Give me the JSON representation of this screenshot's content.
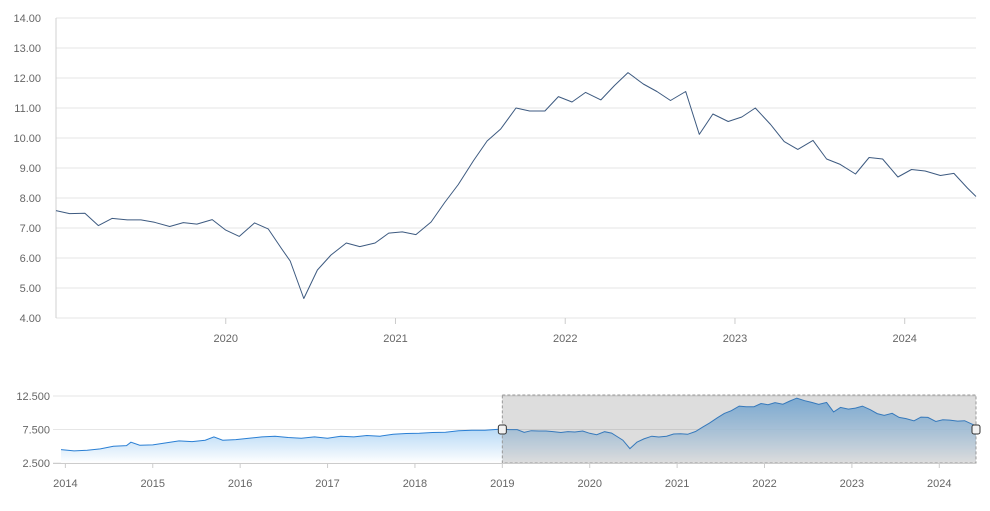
{
  "chart_data": [
    {
      "type": "line",
      "name": "main-chart",
      "ylim": [
        4.0,
        14.0
      ],
      "y_ticks": [
        "4.00",
        "5.00",
        "6.00",
        "7.00",
        "8.00",
        "9.00",
        "10.00",
        "11.00",
        "12.00",
        "13.00",
        "14.00"
      ],
      "x_ticks": [
        {
          "label": "2020",
          "x": 2020.0
        },
        {
          "label": "2021",
          "x": 2021.0
        },
        {
          "label": "2022",
          "x": 2022.0
        },
        {
          "label": "2023",
          "x": 2023.0
        },
        {
          "label": "2024",
          "x": 2024.0
        }
      ],
      "xlim": [
        2019.0,
        2024.42
      ],
      "grid": true,
      "color": "#3d5a80",
      "points": [
        [
          2019.0,
          7.58
        ],
        [
          2019.08,
          7.48
        ],
        [
          2019.17,
          7.49
        ],
        [
          2019.25,
          7.08
        ],
        [
          2019.33,
          7.32
        ],
        [
          2019.42,
          7.27
        ],
        [
          2019.5,
          7.27
        ],
        [
          2019.58,
          7.19
        ],
        [
          2019.67,
          7.05
        ],
        [
          2019.75,
          7.18
        ],
        [
          2019.83,
          7.13
        ],
        [
          2019.92,
          7.28
        ],
        [
          2020.0,
          6.93
        ],
        [
          2020.08,
          6.72
        ],
        [
          2020.17,
          7.17
        ],
        [
          2020.25,
          6.97
        ],
        [
          2020.33,
          6.3
        ],
        [
          2020.38,
          5.9
        ],
        [
          2020.46,
          4.65
        ],
        [
          2020.54,
          5.6
        ],
        [
          2020.62,
          6.1
        ],
        [
          2020.71,
          6.5
        ],
        [
          2020.79,
          6.38
        ],
        [
          2020.88,
          6.5
        ],
        [
          2020.96,
          6.83
        ],
        [
          2021.04,
          6.87
        ],
        [
          2021.12,
          6.78
        ],
        [
          2021.21,
          7.2
        ],
        [
          2021.29,
          7.85
        ],
        [
          2021.37,
          8.45
        ],
        [
          2021.46,
          9.25
        ],
        [
          2021.54,
          9.9
        ],
        [
          2021.62,
          10.3
        ],
        [
          2021.71,
          11.0
        ],
        [
          2021.79,
          10.9
        ],
        [
          2021.88,
          10.9
        ],
        [
          2021.96,
          11.38
        ],
        [
          2022.04,
          11.2
        ],
        [
          2022.12,
          11.52
        ],
        [
          2022.21,
          11.27
        ],
        [
          2022.29,
          11.75
        ],
        [
          2022.37,
          12.18
        ],
        [
          2022.46,
          11.8
        ],
        [
          2022.54,
          11.55
        ],
        [
          2022.62,
          11.25
        ],
        [
          2022.71,
          11.55
        ],
        [
          2022.79,
          10.12
        ],
        [
          2022.87,
          10.8
        ],
        [
          2022.96,
          10.55
        ],
        [
          2023.04,
          10.7
        ],
        [
          2023.12,
          11.0
        ],
        [
          2023.21,
          10.45
        ],
        [
          2023.29,
          9.88
        ],
        [
          2023.37,
          9.62
        ],
        [
          2023.46,
          9.92
        ],
        [
          2023.54,
          9.3
        ],
        [
          2023.62,
          9.12
        ],
        [
          2023.71,
          8.8
        ],
        [
          2023.79,
          9.35
        ],
        [
          2023.87,
          9.3
        ],
        [
          2023.96,
          8.7
        ],
        [
          2024.04,
          8.95
        ],
        [
          2024.12,
          8.9
        ],
        [
          2024.21,
          8.75
        ],
        [
          2024.29,
          8.82
        ],
        [
          2024.37,
          8.33
        ],
        [
          2024.42,
          8.05
        ]
      ]
    },
    {
      "type": "area",
      "name": "navigator",
      "ylim": [
        2.5,
        12.5
      ],
      "y_ticks": [
        "2.500",
        "7.500",
        "12.500"
      ],
      "x_ticks": [
        {
          "label": "2014",
          "x": 2014.0
        },
        {
          "label": "2015",
          "x": 2015.0
        },
        {
          "label": "2016",
          "x": 2016.0
        },
        {
          "label": "2017",
          "x": 2017.0
        },
        {
          "label": "2018",
          "x": 2018.0
        },
        {
          "label": "2019",
          "x": 2019.0
        },
        {
          "label": "2020",
          "x": 2020.0
        },
        {
          "label": "2021",
          "x": 2021.0
        },
        {
          "label": "2022",
          "x": 2022.0
        },
        {
          "label": "2023",
          "x": 2023.0
        },
        {
          "label": "2024",
          "x": 2024.0
        }
      ],
      "xlim": [
        2013.95,
        2024.42
      ],
      "selected_range": [
        2019.0,
        2024.42
      ],
      "line_color": "#2a7fd4",
      "fill_top_color": "#5ba8ea",
      "fill_bottom_color": "#ffffff",
      "points": [
        [
          2013.95,
          4.5
        ],
        [
          2014.1,
          4.3
        ],
        [
          2014.25,
          4.4
        ],
        [
          2014.4,
          4.6
        ],
        [
          2014.55,
          5.0
        ],
        [
          2014.7,
          5.1
        ],
        [
          2014.75,
          5.6
        ],
        [
          2014.85,
          5.15
        ],
        [
          2015.0,
          5.2
        ],
        [
          2015.15,
          5.5
        ],
        [
          2015.3,
          5.8
        ],
        [
          2015.45,
          5.7
        ],
        [
          2015.6,
          5.9
        ],
        [
          2015.7,
          6.4
        ],
        [
          2015.8,
          5.9
        ],
        [
          2015.95,
          6.0
        ],
        [
          2016.1,
          6.2
        ],
        [
          2016.25,
          6.4
        ],
        [
          2016.4,
          6.5
        ],
        [
          2016.55,
          6.3
        ],
        [
          2016.7,
          6.2
        ],
        [
          2016.85,
          6.4
        ],
        [
          2017.0,
          6.2
        ],
        [
          2017.15,
          6.5
        ],
        [
          2017.3,
          6.4
        ],
        [
          2017.45,
          6.6
        ],
        [
          2017.6,
          6.5
        ],
        [
          2017.75,
          6.8
        ],
        [
          2017.9,
          6.9
        ],
        [
          2018.05,
          6.95
        ],
        [
          2018.2,
          7.05
        ],
        [
          2018.35,
          7.1
        ],
        [
          2018.5,
          7.3
        ],
        [
          2018.65,
          7.4
        ],
        [
          2018.8,
          7.4
        ],
        [
          2018.92,
          7.5
        ],
        [
          2019.0,
          7.58
        ],
        [
          2019.08,
          7.48
        ],
        [
          2019.17,
          7.49
        ],
        [
          2019.25,
          7.08
        ],
        [
          2019.33,
          7.32
        ],
        [
          2019.42,
          7.27
        ],
        [
          2019.5,
          7.27
        ],
        [
          2019.58,
          7.19
        ],
        [
          2019.67,
          7.05
        ],
        [
          2019.75,
          7.18
        ],
        [
          2019.83,
          7.13
        ],
        [
          2019.92,
          7.28
        ],
        [
          2020.0,
          6.93
        ],
        [
          2020.08,
          6.72
        ],
        [
          2020.17,
          7.17
        ],
        [
          2020.25,
          6.97
        ],
        [
          2020.33,
          6.3
        ],
        [
          2020.38,
          5.9
        ],
        [
          2020.46,
          4.65
        ],
        [
          2020.54,
          5.6
        ],
        [
          2020.62,
          6.1
        ],
        [
          2020.71,
          6.5
        ],
        [
          2020.79,
          6.38
        ],
        [
          2020.88,
          6.5
        ],
        [
          2020.96,
          6.83
        ],
        [
          2021.04,
          6.87
        ],
        [
          2021.12,
          6.78
        ],
        [
          2021.21,
          7.2
        ],
        [
          2021.29,
          7.85
        ],
        [
          2021.37,
          8.45
        ],
        [
          2021.46,
          9.25
        ],
        [
          2021.54,
          9.9
        ],
        [
          2021.62,
          10.3
        ],
        [
          2021.71,
          11.0
        ],
        [
          2021.79,
          10.9
        ],
        [
          2021.88,
          10.9
        ],
        [
          2021.96,
          11.38
        ],
        [
          2022.04,
          11.2
        ],
        [
          2022.12,
          11.52
        ],
        [
          2022.21,
          11.27
        ],
        [
          2022.29,
          11.75
        ],
        [
          2022.37,
          12.18
        ],
        [
          2022.46,
          11.8
        ],
        [
          2022.54,
          11.55
        ],
        [
          2022.62,
          11.25
        ],
        [
          2022.71,
          11.55
        ],
        [
          2022.79,
          10.12
        ],
        [
          2022.87,
          10.8
        ],
        [
          2022.96,
          10.55
        ],
        [
          2023.04,
          10.7
        ],
        [
          2023.12,
          11.0
        ],
        [
          2023.21,
          10.45
        ],
        [
          2023.29,
          9.88
        ],
        [
          2023.37,
          9.62
        ],
        [
          2023.46,
          9.92
        ],
        [
          2023.54,
          9.3
        ],
        [
          2023.62,
          9.12
        ],
        [
          2023.71,
          8.8
        ],
        [
          2023.79,
          9.35
        ],
        [
          2023.87,
          9.3
        ],
        [
          2023.96,
          8.7
        ],
        [
          2024.04,
          8.95
        ],
        [
          2024.12,
          8.9
        ],
        [
          2024.21,
          8.75
        ],
        [
          2024.29,
          8.82
        ],
        [
          2024.37,
          8.33
        ],
        [
          2024.42,
          8.05
        ]
      ]
    }
  ]
}
